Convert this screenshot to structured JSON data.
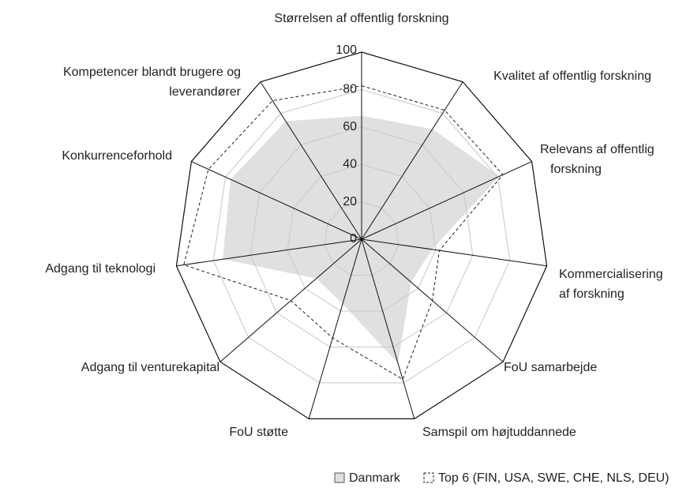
{
  "chart_data": {
    "type": "radar",
    "categories": [
      "Størrelsen af offentlig forskning",
      "Kvalitet af offentlig forskning",
      "Relevans af offentlig forskning",
      "Kommercialisering af forskning",
      "FoU samarbejde",
      "Samspil om højtuddannede",
      "FoU støtte",
      "Adgang til venturekapital",
      "Adgang til teknologi",
      "Konkurrenceforhold",
      "Kompetencer blandt brugere og leverandører"
    ],
    "series": [
      {
        "name": "Danmark",
        "color": "#e0e0e0",
        "values": [
          66,
          70,
          81,
          38,
          35,
          69,
          36,
          32,
          75,
          77,
          75
        ]
      },
      {
        "name": "Top 6 (FIN, USA, SWE, CHE, NLS, DEU)",
        "color": "#222222",
        "values": [
          82,
          82,
          83,
          42,
          50,
          78,
          55,
          50,
          96,
          90,
          88
        ]
      }
    ],
    "ylim": [
      0,
      100
    ],
    "yticks": [
      0,
      20,
      40,
      60,
      80,
      100
    ],
    "grid": true
  }
}
